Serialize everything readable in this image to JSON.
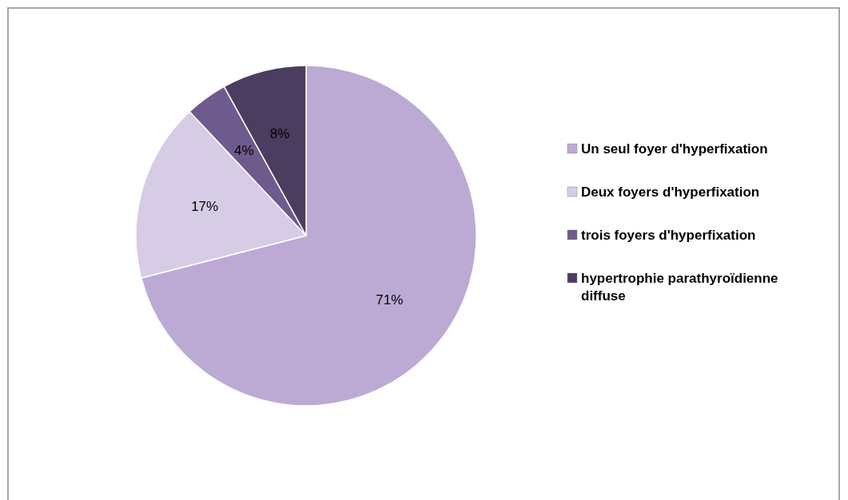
{
  "chart_data": {
    "type": "pie",
    "categories": [
      "Un seul foyer d'hyperfixation",
      "Deux foyers d'hyperfixation",
      "trois foyers d'hyperfixation",
      "hypertrophie parathyroïdienne diffuse"
    ],
    "values": [
      71,
      17,
      4,
      8
    ],
    "colors": [
      "#bcaad4",
      "#d6cce6",
      "#6e5a8c",
      "#4b3d5f"
    ],
    "value_labels": [
      "71%",
      "17%",
      "4%",
      "8%"
    ],
    "legend": "right"
  }
}
